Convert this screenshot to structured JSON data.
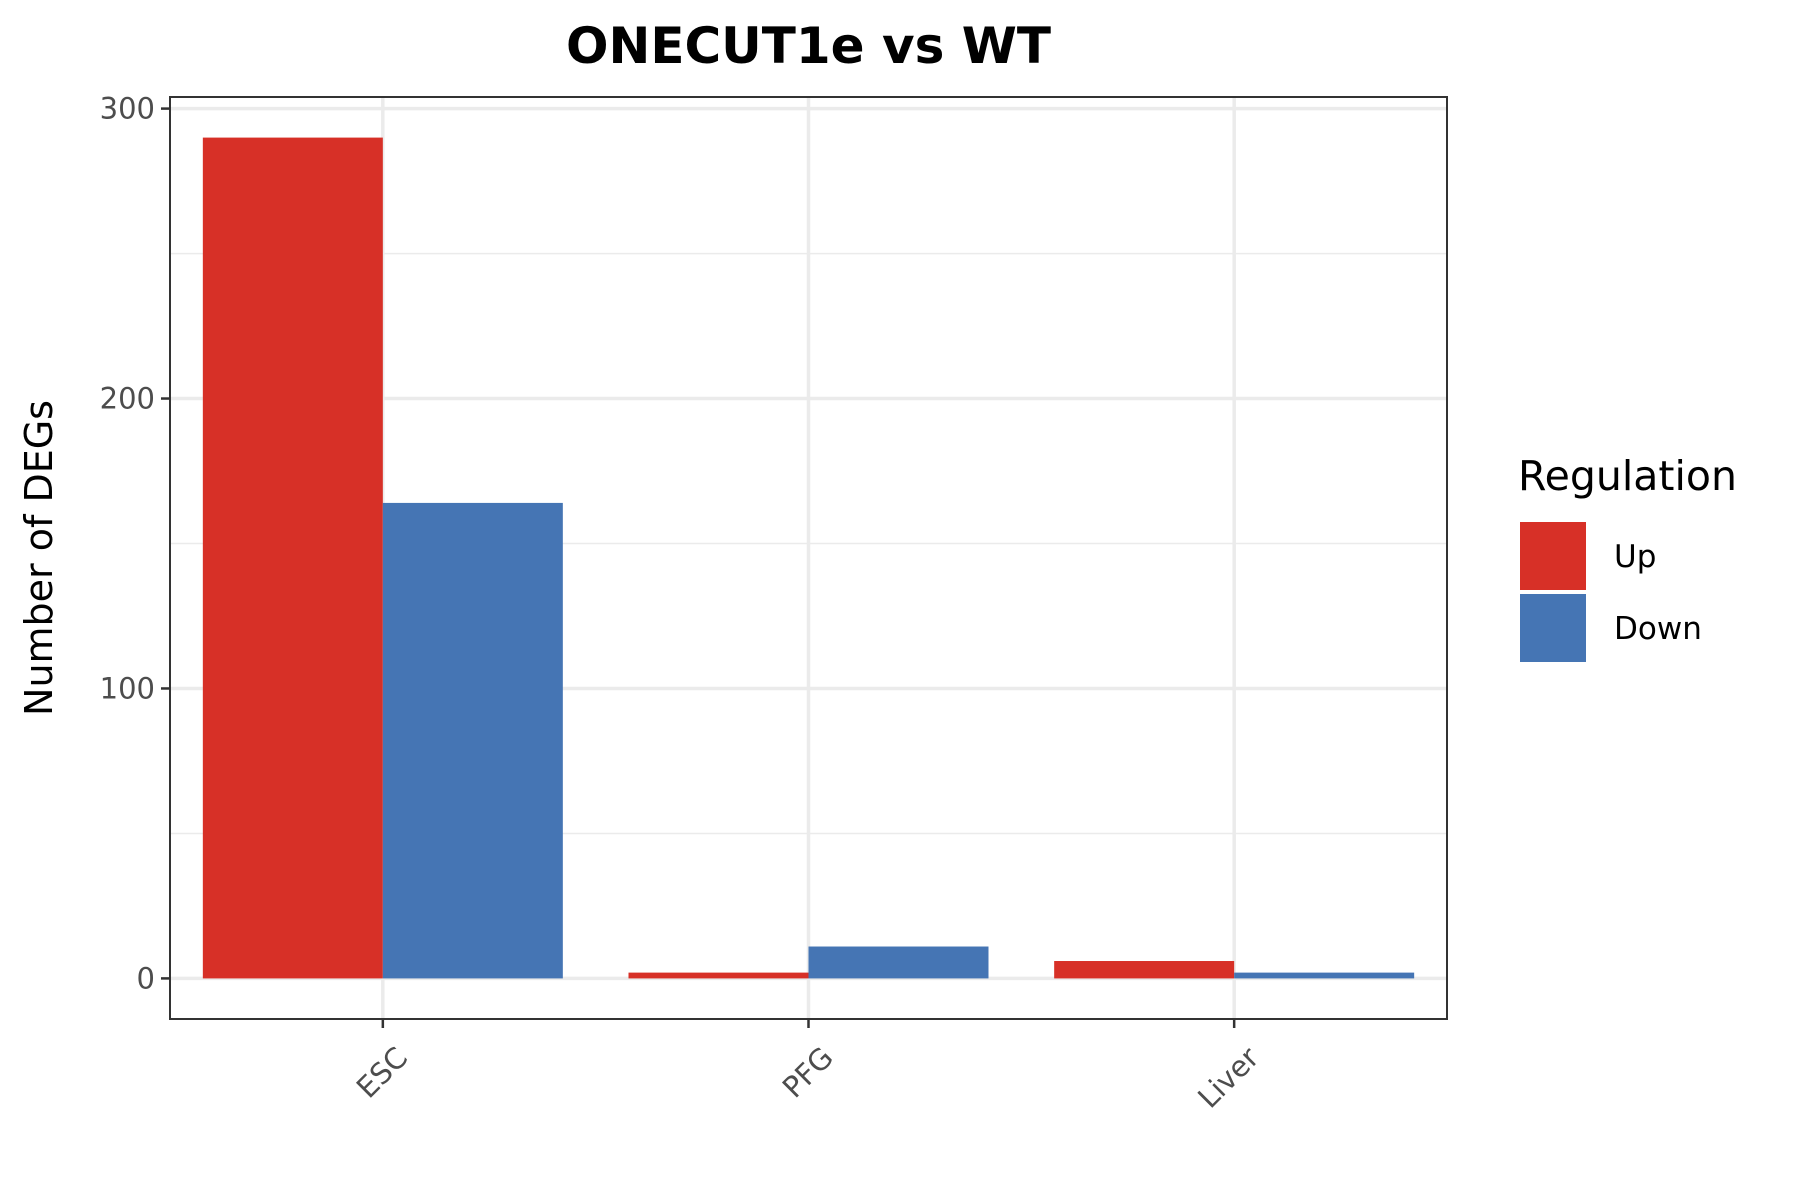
{
  "chart_data": {
    "type": "bar",
    "title": "ONECUT1e vs WT",
    "xlabel": "",
    "ylabel": "Number of DEGs",
    "categories": [
      "ESC",
      "PFG",
      "Liver"
    ],
    "series": [
      {
        "name": "Up",
        "values": [
          290,
          2,
          6
        ]
      },
      {
        "name": "Down",
        "values": [
          164,
          11,
          2
        ]
      }
    ],
    "ylim": [
      -14,
      304
    ],
    "yticks": [
      0,
      100,
      200,
      300
    ],
    "yticks_minor": [
      50,
      150,
      250
    ],
    "grid": true,
    "legend": {
      "title": "Regulation",
      "position": "right"
    },
    "colors": {
      "Up": "#d73027",
      "Down": "#4575b4"
    },
    "panel_border": "#333333",
    "grid_color": "#ebebeb"
  }
}
